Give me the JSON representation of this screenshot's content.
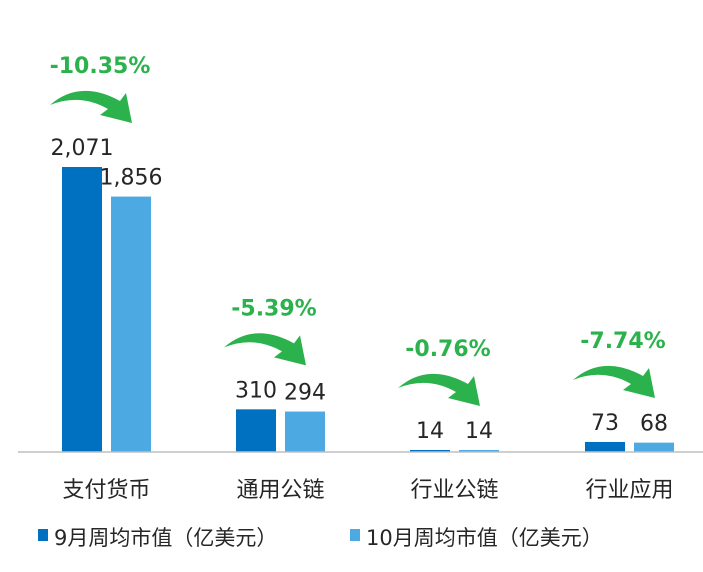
{
  "chart_data": {
    "type": "bar",
    "categories": [
      "支付货币",
      "通用公链",
      "行业公链",
      "行业应用"
    ],
    "series": [
      {
        "name": "9月周均市值（亿美元）",
        "color": "#0070c0",
        "values": [
          2071,
          310,
          14,
          73
        ],
        "labels": [
          "2,071",
          "310",
          "14",
          "73"
        ]
      },
      {
        "name": "10月周均市值（亿美元）",
        "color": "#4da9e2",
        "values": [
          1856,
          294,
          14,
          68
        ],
        "labels": [
          "1,856",
          "294",
          "14",
          "68"
        ]
      }
    ],
    "changes": [
      "-10.35%",
      "-5.39%",
      "-0.76%",
      "-7.74%"
    ],
    "arrow_color": "#2bb24c",
    "axis_color": "#bfbfbf",
    "ylim": [
      0,
      2071
    ],
    "legend_position": "bottom",
    "grid": false
  }
}
